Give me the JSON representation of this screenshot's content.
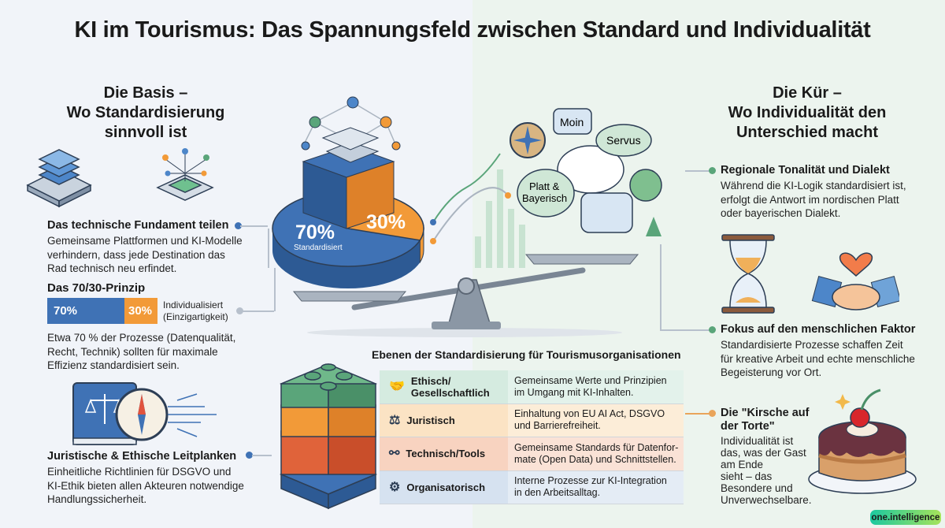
{
  "title": "KI im Tourismus: Das Spannungsfeld zwischen Standard und Individualität",
  "left": {
    "heading": [
      "Die Basis –",
      "Wo Standardisierung",
      "sinnvoll ist"
    ],
    "fundament": {
      "title": "Das technische Fundament teilen",
      "body": [
        "Gemeinsame Plattformen und KI-Modelle",
        "verhindern, dass jede Destination das",
        "Rad technisch neu erfindet."
      ]
    },
    "prinzip": {
      "title": "Das 70/30-Prinzip",
      "standard_pct": 70,
      "individual_pct": 30,
      "standard_label": "70%",
      "individual_label": "30%",
      "legend": [
        "Individualisiert",
        "(Einzigartigkeit)"
      ],
      "body": [
        "Etwa 70 % der Prozesse (Datenqualität,",
        "Recht, Technik) sollten für maximale",
        "Effizienz standardisiert sein."
      ]
    },
    "leitplanken": {
      "title": "Juristische & Ethische Leitplanken",
      "body": [
        "Einheitliche Richtlinien für DSGVO und",
        "KI-Ethik bieten allen Akteuren notwendige",
        "Handlungssicherheit."
      ]
    }
  },
  "center": {
    "pie": {
      "standard_label": "70%",
      "standard_sub": "Standardisiert",
      "individual_label": "30%",
      "standard_pct": 70,
      "individual_pct": 30
    },
    "bubbles": [
      "Moin",
      "Servus",
      "Platt &",
      "Bayerisch"
    ]
  },
  "table": {
    "title": "Ebenen der Standardisierung für Tourismusorganisationen",
    "rows": [
      {
        "icon": "handshake-icon",
        "label": [
          "Ethisch/",
          "Gesellschaftlich"
        ],
        "desc": [
          "Gemeinsame Werte und Prinzipien",
          "im Umgang mit KI-Inhalten."
        ],
        "color": "#d5ebe0"
      },
      {
        "icon": "gavel-icon",
        "label": [
          "Juristisch",
          ""
        ],
        "desc": [
          "Einhaltung von EU AI Act, DSGVO",
          "und Barrierefreiheit."
        ],
        "color": "#fbe3c4"
      },
      {
        "icon": "network-icon",
        "label": [
          "Technisch/Tools",
          ""
        ],
        "desc": [
          "Gemeinsame Standards für Datenfor-",
          "mate (Open Data) und Schnittstellen."
        ],
        "color": "#f8d3c0"
      },
      {
        "icon": "gear-cycle-icon",
        "label": [
          "Organisatorisch",
          ""
        ],
        "desc": [
          "Interne Prozesse zur KI-Integration",
          "in den Arbeitsalltag."
        ],
        "color": "#d6e2f0"
      }
    ]
  },
  "right": {
    "heading": [
      "Die Kür –",
      "Wo Individualität den",
      "Unterschied macht"
    ],
    "dialekt": {
      "title": "Regionale Tonalität und Dialekt",
      "body": [
        "Während die KI-Logik standardisiert ist,",
        "erfolgt die Antwort im nordischen Platt",
        "oder bayerischen Dialekt."
      ]
    },
    "faktor": {
      "title": "Fokus auf den menschlichen Faktor",
      "body": [
        "Standardisierte Prozesse schaffen Zeit",
        "für kreative Arbeit und echte menschliche",
        "Begeisterung vor Ort."
      ]
    },
    "kirsche": {
      "title": [
        "Die \"Kirsche auf",
        "der Torte\""
      ],
      "body": [
        "Individualität ist",
        "das, was der Gast",
        "am Ende",
        "sieht – das",
        "Besondere und",
        "Unverwechselbare."
      ]
    }
  },
  "logo": "one.intelligence",
  "colors": {
    "standard": "#3f72b5",
    "individual": "#f29a38",
    "green": "#5aa57a"
  }
}
